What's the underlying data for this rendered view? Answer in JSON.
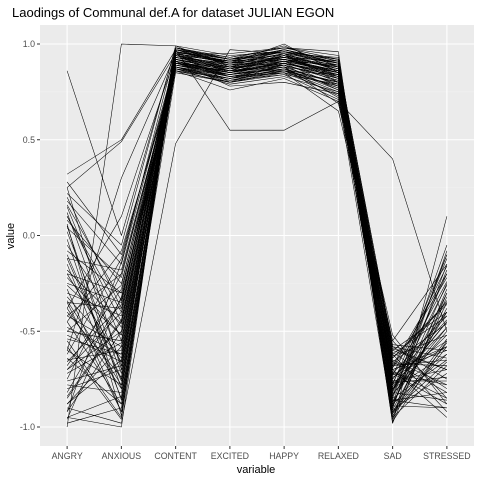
{
  "chart_data": {
    "type": "line",
    "title": "Laodings of Communal def.A for dataset JULIAN EGON",
    "xlabel": "variable",
    "ylabel": "value",
    "categories": [
      "ANGRY",
      "ANXIOUS",
      "CONTENT",
      "EXCITED",
      "HAPPY",
      "RELAXED",
      "SAD",
      "STRESSED"
    ],
    "ylim": [
      -1.0,
      1.0
    ],
    "yticks": [
      -1.0,
      -0.5,
      0.0,
      0.5,
      1.0
    ],
    "ytick_labels": [
      "-1.0",
      "-0.5",
      "0.0",
      "0.5",
      "1.0"
    ],
    "grid": true,
    "legend": "none",
    "colors": {
      "panel": "#ebebeb",
      "grid_major": "#ffffff",
      "grid_minor": "#f2f2f2",
      "line": "#000000"
    },
    "series": [
      {
        "values": [
          0.86,
          0.0,
          0.98,
          0.9,
          1.0,
          0.85,
          -0.72,
          -0.78
        ]
      },
      {
        "values": [
          -1.0,
          1.0,
          0.99,
          0.88,
          0.97,
          0.9,
          -0.8,
          -0.45
        ]
      },
      {
        "values": [
          -0.95,
          -1.0,
          0.98,
          0.92,
          0.99,
          0.88,
          -0.7,
          -0.6
        ]
      },
      {
        "values": [
          -0.9,
          -0.98,
          0.48,
          0.97,
          0.95,
          0.93,
          -0.97,
          -0.55
        ]
      },
      {
        "values": [
          0.32,
          0.5,
          0.97,
          0.55,
          0.55,
          0.7,
          0.4,
          -0.5
        ]
      },
      {
        "values": [
          0.25,
          0.49,
          0.95,
          0.95,
          0.98,
          0.96,
          -0.98,
          0.1
        ]
      },
      {
        "values": [
          -0.35,
          -0.92,
          0.96,
          0.85,
          0.93,
          0.91,
          -0.75,
          -0.4
        ]
      },
      {
        "values": [
          -0.6,
          0.3,
          0.95,
          0.8,
          0.9,
          0.78,
          -0.6,
          -0.7
        ]
      },
      {
        "values": [
          0.1,
          -0.45,
          0.92,
          0.88,
          0.86,
          0.84,
          -0.88,
          -0.3
        ]
      },
      {
        "values": [
          -0.8,
          -0.7,
          0.9,
          0.83,
          0.85,
          0.65,
          -0.55,
          -0.85
        ]
      },
      {
        "values": [
          -0.2,
          -0.3,
          0.94,
          0.86,
          0.95,
          0.8,
          -0.82,
          -0.2
        ]
      },
      {
        "values": [
          -0.5,
          -0.55,
          0.97,
          0.9,
          0.92,
          0.88,
          -0.68,
          -0.65
        ]
      },
      {
        "values": [
          0.05,
          -0.8,
          0.88,
          0.82,
          0.89,
          0.76,
          -0.9,
          -0.15
        ]
      },
      {
        "values": [
          -0.7,
          -0.4,
          0.93,
          0.87,
          0.94,
          0.82,
          -0.78,
          -0.48
        ]
      },
      {
        "values": [
          0.18,
          -0.15,
          0.91,
          0.78,
          0.8,
          0.74,
          -0.62,
          -0.92
        ]
      },
      {
        "values": [
          -0.88,
          -0.65,
          0.89,
          0.85,
          0.91,
          0.86,
          -0.93,
          -0.35
        ]
      },
      {
        "values": [
          -0.25,
          -0.35,
          0.96,
          0.92,
          0.97,
          0.9,
          -0.58,
          -0.75
        ]
      },
      {
        "values": [
          -0.45,
          -0.88,
          0.85,
          0.8,
          0.84,
          0.79,
          -0.85,
          -0.1
        ]
      },
      {
        "values": [
          0.22,
          -0.05,
          0.99,
          0.94,
          0.96,
          0.92,
          -0.74,
          -0.58
        ]
      },
      {
        "values": [
          -0.65,
          -0.6,
          0.9,
          0.88,
          0.9,
          0.85,
          -0.66,
          -0.82
        ]
      },
      {
        "values": [
          -0.1,
          -0.75,
          0.87,
          0.84,
          0.88,
          0.72,
          -0.95,
          -0.28
        ]
      },
      {
        "values": [
          -0.38,
          0.1,
          0.94,
          0.91,
          0.93,
          0.87,
          -0.72,
          -0.42
        ]
      },
      {
        "values": [
          -0.92,
          -0.5,
          0.98,
          0.93,
          0.98,
          0.94,
          -0.8,
          -0.62
        ]
      },
      {
        "values": [
          0.08,
          -0.25,
          0.86,
          0.76,
          0.82,
          0.7,
          -0.52,
          -0.88
        ]
      },
      {
        "values": [
          -0.55,
          -0.95,
          0.92,
          0.86,
          0.94,
          0.83,
          -0.87,
          -0.18
        ]
      },
      {
        "values": [
          -0.3,
          -0.42,
          0.97,
          0.89,
          0.91,
          0.89,
          -0.63,
          -0.52
        ]
      },
      {
        "values": [
          -0.75,
          -0.2,
          0.88,
          0.81,
          0.87,
          0.77,
          -0.76,
          -0.7
        ]
      },
      {
        "values": [
          0.12,
          -0.68,
          0.93,
          0.9,
          0.95,
          0.86,
          -0.91,
          -0.38
        ]
      },
      {
        "values": [
          -0.42,
          -0.58,
          0.9,
          0.83,
          0.86,
          0.8,
          -0.7,
          -0.95
        ]
      },
      {
        "values": [
          -0.15,
          -0.85,
          0.95,
          0.87,
          0.92,
          0.84,
          -0.84,
          -0.05
        ]
      },
      {
        "values": [
          -0.82,
          -0.33,
          0.91,
          0.85,
          0.89,
          0.81,
          -0.57,
          -0.6
        ]
      },
      {
        "values": [
          -0.05,
          -0.48,
          0.96,
          0.91,
          0.97,
          0.91,
          -0.79,
          -0.45
        ]
      },
      {
        "values": [
          -0.6,
          -0.78,
          0.87,
          0.79,
          0.83,
          0.75,
          -0.89,
          -0.25
        ]
      },
      {
        "values": [
          0.28,
          -0.1,
          0.89,
          0.84,
          0.88,
          0.69,
          -0.61,
          -0.8
        ]
      },
      {
        "values": [
          -0.48,
          -0.62,
          0.94,
          0.88,
          0.93,
          0.85,
          -0.73,
          -0.55
        ]
      },
      {
        "values": [
          -0.98,
          -0.9,
          0.92,
          0.86,
          0.9,
          0.83,
          -0.96,
          -0.32
        ]
      },
      {
        "values": [
          -0.22,
          -0.52,
          0.98,
          0.92,
          0.96,
          0.9,
          -0.67,
          -0.68
        ]
      },
      {
        "values": [
          -0.68,
          -0.28,
          0.86,
          0.82,
          0.85,
          0.78,
          -0.81,
          -0.12
        ]
      },
      {
        "values": [
          0.02,
          -0.72,
          0.93,
          0.87,
          0.91,
          0.82,
          -0.86,
          -0.9
        ]
      },
      {
        "values": [
          -0.35,
          -0.38,
          0.9,
          0.85,
          0.94,
          0.87,
          -0.6,
          -0.4
        ]
      },
      {
        "values": [
          -0.78,
          -0.82,
          0.95,
          0.9,
          0.92,
          0.88,
          -0.92,
          -0.66
        ]
      },
      {
        "values": [
          -0.12,
          -0.18,
          0.88,
          0.8,
          0.86,
          0.73,
          -0.69,
          -0.22
        ]
      },
      {
        "values": [
          -0.52,
          -0.66,
          0.97,
          0.93,
          0.98,
          0.92,
          -0.77,
          -0.74
        ]
      },
      {
        "values": [
          0.15,
          -0.55,
          0.91,
          0.84,
          0.87,
          0.8,
          -0.83,
          -0.5
        ]
      },
      {
        "values": [
          -0.85,
          -0.45,
          0.89,
          0.86,
          0.9,
          0.84,
          -0.64,
          -0.35
        ]
      },
      {
        "values": [
          -0.28,
          -0.92,
          0.94,
          0.89,
          0.95,
          0.86,
          -0.94,
          -0.58
        ]
      },
      {
        "values": [
          -0.62,
          -0.12,
          0.92,
          0.83,
          0.88,
          0.79,
          -0.71,
          -0.85
        ]
      },
      {
        "values": [
          0.2,
          -0.38,
          0.87,
          0.81,
          0.84,
          0.71,
          -0.55,
          -0.15
        ]
      },
      {
        "values": [
          -0.4,
          -0.74,
          0.96,
          0.91,
          0.93,
          0.89,
          -0.88,
          -0.62
        ]
      },
      {
        "values": [
          -0.72,
          -0.56,
          0.9,
          0.87,
          0.92,
          0.85,
          -0.75,
          -0.44
        ]
      },
      {
        "values": [
          -0.08,
          -0.3,
          0.93,
          0.88,
          0.89,
          0.82,
          -0.65,
          -0.78
        ]
      },
      {
        "values": [
          -0.95,
          -0.84,
          0.88,
          0.82,
          0.87,
          0.76,
          -0.9,
          -0.08
        ]
      },
      {
        "values": [
          -0.32,
          -0.64,
          0.95,
          0.9,
          0.96,
          0.88,
          -0.8,
          -0.52
        ]
      },
      {
        "values": [
          0.04,
          -0.22,
          0.91,
          0.85,
          0.9,
          0.83,
          -0.59,
          -0.7
        ]
      },
      {
        "values": [
          -0.58,
          -0.96,
          0.97,
          0.92,
          0.94,
          0.9,
          -0.98,
          -0.3
        ]
      },
      {
        "values": [
          -0.18,
          -0.46,
          0.89,
          0.84,
          0.91,
          0.8,
          -0.72,
          -0.88
        ]
      },
      {
        "values": [
          -0.66,
          -0.36,
          0.92,
          0.86,
          0.88,
          0.84,
          -0.83,
          -0.48
        ]
      },
      {
        "values": [
          0.25,
          -0.7,
          0.94,
          0.89,
          0.95,
          0.87,
          -0.68,
          -0.2
        ]
      },
      {
        "values": [
          -0.45,
          -0.08,
          0.86,
          0.8,
          0.85,
          0.74,
          -0.85,
          -0.65
        ]
      },
      {
        "values": [
          -0.88,
          -0.58,
          0.96,
          0.91,
          0.97,
          0.91,
          -0.62,
          -0.42
        ]
      },
      {
        "values": [
          -0.02,
          -0.86,
          0.9,
          0.84,
          0.89,
          0.81,
          -0.91,
          -0.72
        ]
      },
      {
        "values": [
          -0.5,
          -0.26,
          0.93,
          0.87,
          0.92,
          0.86,
          -0.78,
          -0.1
        ]
      },
      {
        "values": [
          -0.76,
          -0.68,
          0.88,
          0.83,
          0.86,
          0.78,
          -0.7,
          -0.58
        ]
      },
      {
        "values": [
          0.1,
          -0.4,
          0.95,
          0.9,
          0.93,
          0.89,
          -0.86,
          -0.82
        ]
      },
      {
        "values": [
          -0.38,
          -0.8,
          0.91,
          0.85,
          0.9,
          0.83,
          -0.64,
          -0.36
        ]
      },
      {
        "values": [
          -0.92,
          -0.14,
          0.97,
          0.92,
          0.96,
          0.92,
          -0.93,
          -0.56
        ]
      },
      {
        "values": [
          -0.26,
          -0.52,
          0.87,
          0.82,
          0.87,
          0.77,
          -0.76,
          -0.76
        ]
      },
      {
        "values": [
          -0.64,
          -0.88,
          0.92,
          0.87,
          0.91,
          0.85,
          -0.81,
          -0.26
        ]
      },
      {
        "values": [
          0.16,
          -0.34,
          0.89,
          0.83,
          0.88,
          0.79,
          -0.66,
          -0.46
        ]
      },
      {
        "values": [
          -0.54,
          -0.62,
          0.94,
          0.88,
          0.94,
          0.87,
          -0.89,
          -0.9
        ]
      },
      {
        "values": [
          -0.12,
          -0.76,
          0.9,
          0.86,
          0.89,
          0.82,
          -0.73,
          -0.16
        ]
      },
      {
        "values": [
          -0.84,
          -0.44,
          0.96,
          0.9,
          0.95,
          0.9,
          -0.58,
          -0.64
        ]
      },
      {
        "values": [
          -0.42,
          -0.2,
          0.88,
          0.84,
          0.87,
          0.8,
          -0.87,
          -0.4
        ]
      },
      {
        "values": [
          0.06,
          -0.94,
          0.93,
          0.89,
          0.92,
          0.86,
          -0.95,
          -0.68
        ]
      },
      {
        "values": [
          -0.7,
          -0.5,
          0.91,
          0.85,
          0.9,
          0.84,
          -0.69,
          -0.34
        ]
      },
      {
        "values": [
          -0.2,
          -0.66,
          0.95,
          0.91,
          0.96,
          0.89,
          -0.82,
          -0.86
        ]
      },
      {
        "values": [
          -0.96,
          -0.32,
          0.87,
          0.81,
          0.86,
          0.75,
          -0.77,
          -0.24
        ]
      },
      {
        "values": [
          -0.34,
          -0.78,
          0.94,
          0.88,
          0.93,
          0.88,
          -0.92,
          -0.54
        ]
      }
    ]
  }
}
